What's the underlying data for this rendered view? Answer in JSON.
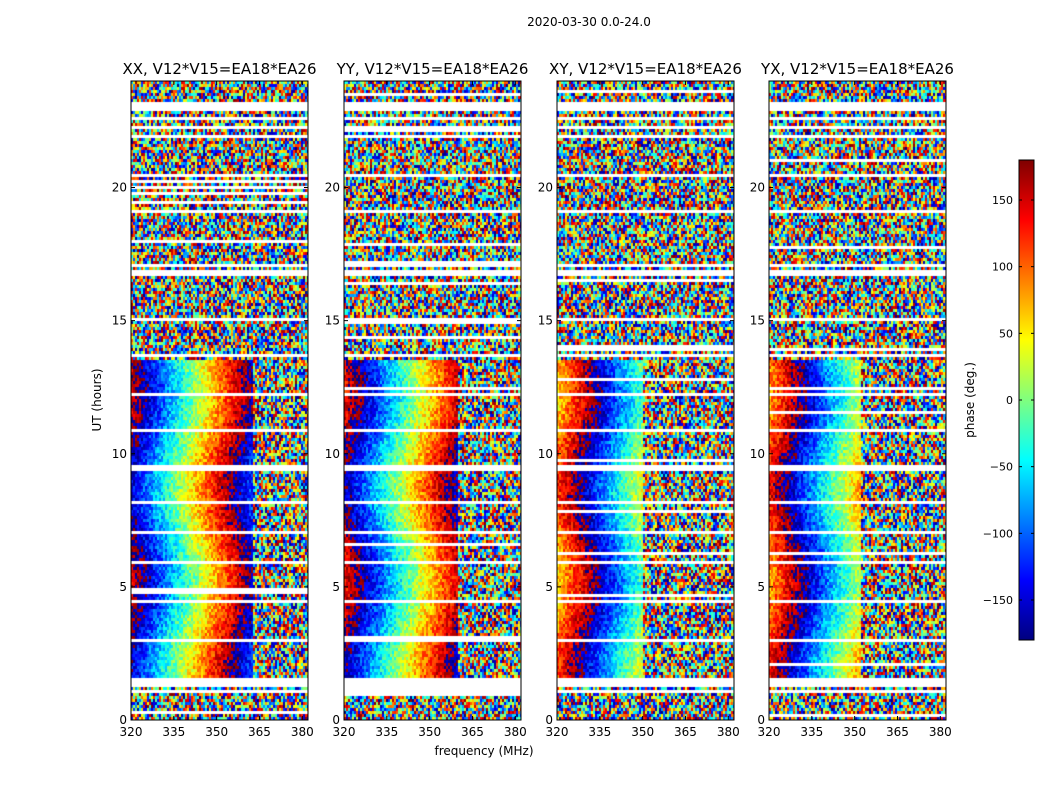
{
  "chart_data": {
    "type": "heatmap",
    "figure_title": "2020-03-30 0.0-24.0",
    "xlabel": "frequency (MHz)",
    "ylabel": "UT (hours)",
    "xlim": [
      320,
      382
    ],
    "ylim": [
      0,
      24
    ],
    "x_ticks": [
      320,
      335,
      350,
      365,
      380
    ],
    "y_ticks": [
      0,
      5,
      10,
      15,
      20
    ],
    "panels": [
      {
        "title": "XX, V12*V15=EA18*EA26",
        "coherent_until_mhz": 363,
        "fringe_offset_mhz": 0,
        "period_mhz": 38
      },
      {
        "title": "YY, V12*V15=EA18*EA26",
        "coherent_until_mhz": 360,
        "fringe_offset_mhz": 2,
        "period_mhz": 38
      },
      {
        "title": "XY, V12*V15=EA18*EA26",
        "coherent_until_mhz": 350,
        "fringe_offset_mhz": 10,
        "period_mhz": 38
      },
      {
        "title": "YX, V12*V15=EA18*EA26",
        "coherent_until_mhz": 352,
        "fringe_offset_mhz": 8,
        "period_mhz": 38
      }
    ],
    "gaps_hours": [
      [
        1.05,
        1.15
      ],
      [
        1.2,
        1.3
      ],
      [
        1.4,
        1.55
      ],
      [
        2.95,
        3.05
      ],
      [
        4.4,
        4.5
      ],
      [
        5.85,
        5.95
      ],
      [
        6.95,
        7.05
      ],
      [
        8.15,
        8.25
      ],
      [
        9.4,
        9.55
      ],
      [
        10.8,
        10.9
      ],
      [
        12.2,
        12.3
      ],
      [
        13.6,
        13.7
      ],
      [
        14.95,
        15.1
      ],
      [
        16.7,
        16.85
      ],
      [
        17.05,
        17.15
      ],
      [
        19.0,
        19.1
      ],
      [
        20.4,
        20.55
      ],
      [
        21.9,
        22.0
      ],
      [
        22.2,
        22.35
      ],
      [
        22.5,
        22.6
      ],
      [
        22.9,
        23.05
      ],
      [
        23.1,
        23.2
      ]
    ],
    "colorbar": {
      "label": "phase (deg.)",
      "range": [
        -180,
        180
      ],
      "ticks": [
        -150,
        -100,
        -50,
        0,
        50,
        100,
        150
      ],
      "tick_labels": [
        "−150",
        "−100",
        "−50",
        "0",
        "50",
        "100",
        "150"
      ],
      "colormap": "jet",
      "colormap_stops": [
        "#00007f",
        "#0000ff",
        "#007fff",
        "#00ffff",
        "#7fff7f",
        "#ffff00",
        "#ff7f00",
        "#ff0000",
        "#7f0000"
      ]
    }
  }
}
